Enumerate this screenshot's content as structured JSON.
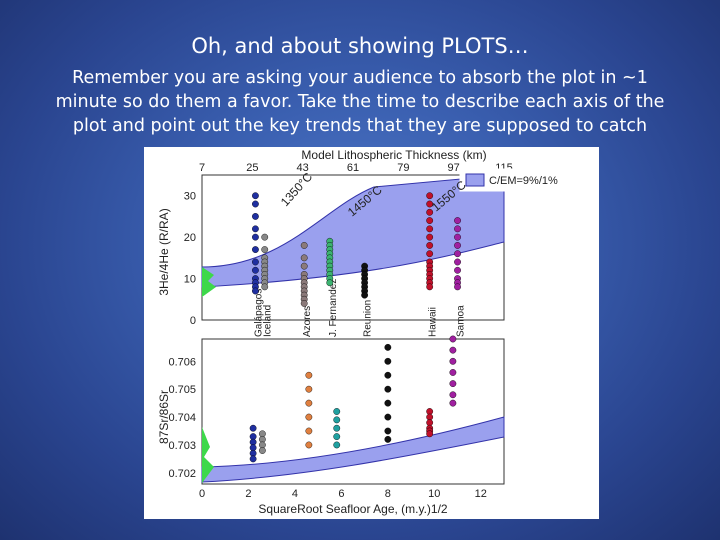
{
  "slide": {
    "title": "Oh, and about showing PLOTS…",
    "body": "Remember you are asking your audience to absorb the plot in ~1 minute so do them a favor.  Take the time to describe each axis of the plot and point out the key trends that they are supposed to catch"
  },
  "colors": {
    "background": "#3a5fb0",
    "band_fill": "#9aa0ee",
    "band_stroke": "#3333aa"
  },
  "chart_data": [
    {
      "type": "scatter",
      "top_axis_label": "Model Lithospheric Thickness (km)",
      "top_ticks": [
        "7",
        "25",
        "43",
        "61",
        "79",
        "97",
        "115"
      ],
      "ylabel": "3He/4He (R/RA)",
      "yticks": [
        "0",
        "10",
        "20",
        "30"
      ],
      "ylim": [
        0,
        35
      ],
      "legend": "C/EM=9%/1%",
      "curve_labels": [
        "1350°C",
        "1450°C",
        "1550°C"
      ],
      "islands": [
        "Galápagos",
        "Iceland",
        "Azores",
        "J. Fernandez",
        "Reunion",
        "Hawaii",
        "Samoa"
      ],
      "series": [
        {
          "name": "Galápagos",
          "color": "#1f2fa0",
          "x": 2.3,
          "y": [
            30,
            28,
            25,
            22,
            20,
            17,
            14,
            12,
            10,
            9,
            8,
            7
          ]
        },
        {
          "name": "Iceland",
          "color": "#888888",
          "x": 2.7,
          "y": [
            20,
            17,
            15,
            14,
            13,
            12,
            11,
            10,
            9,
            8
          ]
        },
        {
          "name": "Azores",
          "color": "#8b7a7a",
          "x": 4.4,
          "y": [
            18,
            15,
            13,
            11,
            10,
            9,
            8,
            7,
            6,
            5,
            4
          ]
        },
        {
          "name": "J. Fernandez",
          "color": "#3cb371",
          "x": 5.5,
          "y": [
            19,
            18,
            17,
            16,
            15,
            14,
            13,
            12,
            11,
            10,
            9
          ]
        },
        {
          "name": "Reunion",
          "color": "#111111",
          "x": 7.0,
          "y": [
            13,
            12,
            11,
            10,
            9,
            8,
            7,
            6
          ]
        },
        {
          "name": "Hawaii",
          "color": "#c0102a",
          "x": 9.8,
          "y": [
            30,
            28,
            26,
            24,
            22,
            20,
            18,
            16,
            14,
            13,
            12,
            11,
            10,
            9,
            8
          ]
        },
        {
          "name": "Samoa",
          "color": "#a020a0",
          "x": 11.0,
          "y": [
            24,
            22,
            20,
            18,
            16,
            14,
            12,
            10,
            9,
            8
          ]
        }
      ]
    },
    {
      "type": "scatter",
      "xlabel": "SquareRoot Seafloor Age, (m.y.)1/2",
      "xticks": [
        "0",
        "2",
        "4",
        "6",
        "8",
        "10",
        "12"
      ],
      "xlim": [
        0,
        13
      ],
      "ylabel": "87Sr/86Sr",
      "yticks": [
        "0.702",
        "0.703",
        "0.704",
        "0.705",
        "0.706"
      ],
      "ylim": [
        0.7016,
        0.7068
      ],
      "series": [
        {
          "name": "Galápagos",
          "color": "#1f2fa0",
          "x": 2.2,
          "y": [
            0.7036,
            0.7033,
            0.7031,
            0.7029,
            0.7027,
            0.7025
          ]
        },
        {
          "name": "Iceland",
          "color": "#888888",
          "x": 2.6,
          "y": [
            0.7034,
            0.7032,
            0.703,
            0.7028
          ]
        },
        {
          "name": "Azores",
          "color": "#e08040",
          "x": 4.6,
          "y": [
            0.7055,
            0.705,
            0.7045,
            0.704,
            0.7035,
            0.703
          ]
        },
        {
          "name": "J. Fernandez",
          "color": "#20a0a0",
          "x": 5.8,
          "y": [
            0.7042,
            0.7039,
            0.7036,
            0.7033,
            0.703
          ]
        },
        {
          "name": "Reunion",
          "color": "#111111",
          "x": 8.0,
          "y": [
            0.7065,
            0.706,
            0.7055,
            0.705,
            0.7045,
            0.704,
            0.7035,
            0.7032
          ]
        },
        {
          "name": "Hawaii",
          "color": "#c0102a",
          "x": 9.8,
          "y": [
            0.7042,
            0.704,
            0.7038,
            0.7036,
            0.7035,
            0.7034
          ]
        },
        {
          "name": "Samoa",
          "color": "#a020a0",
          "x": 10.8,
          "y": [
            0.7068,
            0.7064,
            0.706,
            0.7056,
            0.7052,
            0.7048,
            0.7045
          ]
        }
      ]
    }
  ]
}
